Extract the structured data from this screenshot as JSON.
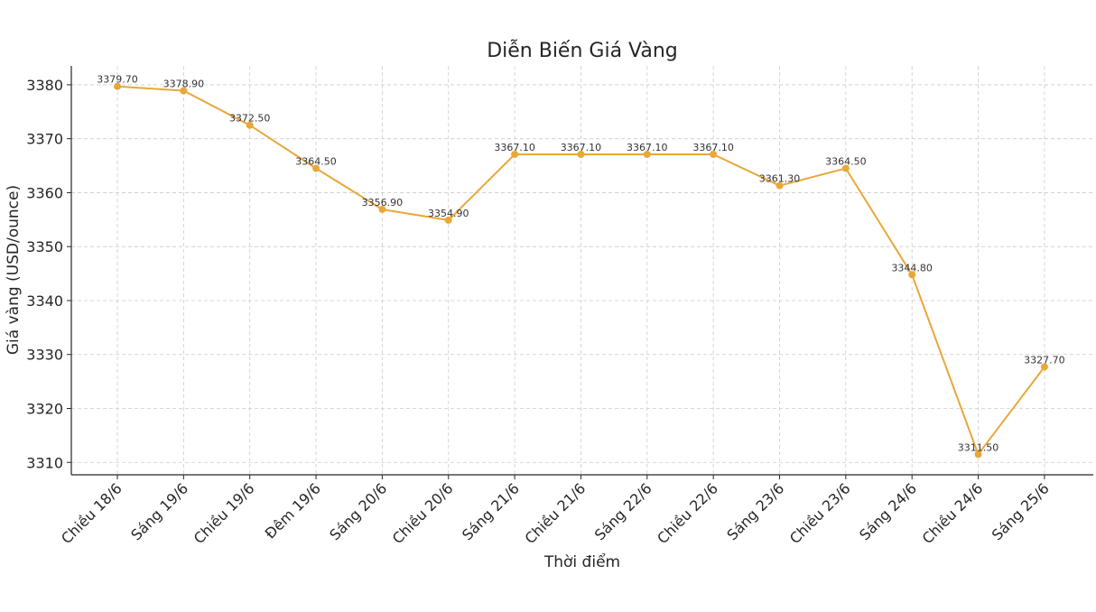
{
  "chart_data": {
    "type": "line",
    "title": "Diễn Biến Giá Vàng",
    "xlabel": "Thời điểm",
    "ylabel": "Giá vàng (USD/ounce)",
    "categories": [
      "Chiều 18/6",
      "Sáng 19/6",
      "Chiều 19/6",
      "Đêm 19/6",
      "Sáng 20/6",
      "Chiều 20/6",
      "Sáng 21/6",
      "Chiều 21/6",
      "Sáng 22/6",
      "Chiều 22/6",
      "Sáng 23/6",
      "Chiều 23/6",
      "Sáng 24/6",
      "Chiều 24/6",
      "Sáng 25/6"
    ],
    "values": [
      3379.7,
      3378.9,
      3372.5,
      3364.5,
      3356.9,
      3354.9,
      3367.1,
      3367.1,
      3367.1,
      3367.1,
      3361.3,
      3364.5,
      3344.8,
      3311.5,
      3327.7
    ],
    "value_labels": [
      "3379.70",
      "3378.90",
      "3372.50",
      "3364.50",
      "3356.90",
      "3354.90",
      "3367.10",
      "3367.10",
      "3367.10",
      "3367.10",
      "3361.30",
      "3364.50",
      "3344.80",
      "3311.50",
      "3327.70"
    ],
    "yticks": [
      3310,
      3320,
      3330,
      3340,
      3350,
      3360,
      3370,
      3380
    ],
    "ylim": [
      3307.7,
      3383.5
    ],
    "grid": true,
    "line_color": "#E8A838"
  }
}
